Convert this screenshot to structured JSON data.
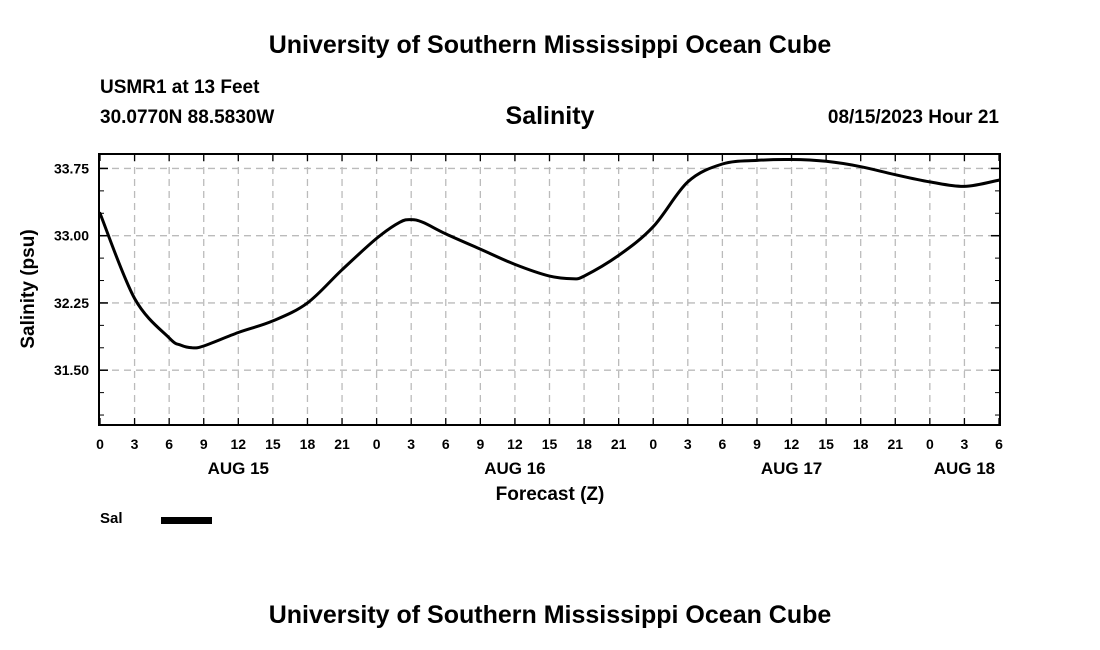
{
  "header": {
    "title": "University of Southern Mississippi Ocean Cube",
    "station": "USMR1 at 13 Feet",
    "coordinates": "30.0770N  88.5830W",
    "timestamp": "08/15/2023 Hour 21"
  },
  "footer": {
    "title": "University of Southern Mississippi Ocean Cube"
  },
  "chart_data": {
    "type": "line",
    "title": "Salinity",
    "xlabel": "Forecast (Z)",
    "ylabel": "Salinity (psu)",
    "x_unit": "hours since 00Z Aug 15",
    "xlim": [
      0,
      78
    ],
    "ylim": [
      30.9,
      33.9
    ],
    "grid": true,
    "x_ticks": [
      {
        "value": 0,
        "label": "0"
      },
      {
        "value": 3,
        "label": "3"
      },
      {
        "value": 6,
        "label": "6"
      },
      {
        "value": 9,
        "label": "9"
      },
      {
        "value": 12,
        "label": "12"
      },
      {
        "value": 15,
        "label": "15"
      },
      {
        "value": 18,
        "label": "18"
      },
      {
        "value": 21,
        "label": "21"
      },
      {
        "value": 24,
        "label": "0"
      },
      {
        "value": 27,
        "label": "3"
      },
      {
        "value": 30,
        "label": "6"
      },
      {
        "value": 33,
        "label": "9"
      },
      {
        "value": 36,
        "label": "12"
      },
      {
        "value": 39,
        "label": "15"
      },
      {
        "value": 42,
        "label": "18"
      },
      {
        "value": 45,
        "label": "21"
      },
      {
        "value": 48,
        "label": "0"
      },
      {
        "value": 51,
        "label": "3"
      },
      {
        "value": 54,
        "label": "6"
      },
      {
        "value": 57,
        "label": "9"
      },
      {
        "value": 60,
        "label": "12"
      },
      {
        "value": 63,
        "label": "15"
      },
      {
        "value": 66,
        "label": "18"
      },
      {
        "value": 69,
        "label": "21"
      },
      {
        "value": 72,
        "label": "0"
      },
      {
        "value": 75,
        "label": "3"
      },
      {
        "value": 78,
        "label": "6"
      }
    ],
    "date_labels": [
      {
        "value": 12,
        "label": "AUG 15"
      },
      {
        "value": 36,
        "label": "AUG 16"
      },
      {
        "value": 60,
        "label": "AUG 17"
      },
      {
        "value": 75,
        "label": "AUG 18"
      }
    ],
    "y_ticks": [
      {
        "value": 31.5,
        "label": "31.50"
      },
      {
        "value": 32.25,
        "label": "32.25"
      },
      {
        "value": 33.0,
        "label": "33.00"
      },
      {
        "value": 33.75,
        "label": "33.75"
      }
    ],
    "series": [
      {
        "name": "Sal",
        "color": "#000000",
        "x": [
          0,
          3,
          6,
          7,
          8,
          9,
          12,
          15,
          18,
          21,
          24,
          26,
          27,
          28,
          30,
          33,
          36,
          39,
          41,
          42,
          45,
          48,
          51,
          54,
          57,
          60,
          63,
          66,
          69,
          72,
          75,
          78
        ],
        "y": [
          33.25,
          32.3,
          31.86,
          31.78,
          31.75,
          31.77,
          31.92,
          32.05,
          32.25,
          32.62,
          32.97,
          33.15,
          33.18,
          33.15,
          33.02,
          32.85,
          32.68,
          32.55,
          32.52,
          32.55,
          32.78,
          33.1,
          33.6,
          33.8,
          33.84,
          33.85,
          33.83,
          33.77,
          33.68,
          33.6,
          33.55,
          33.62
        ]
      }
    ]
  },
  "legend": {
    "label": "Sal"
  }
}
